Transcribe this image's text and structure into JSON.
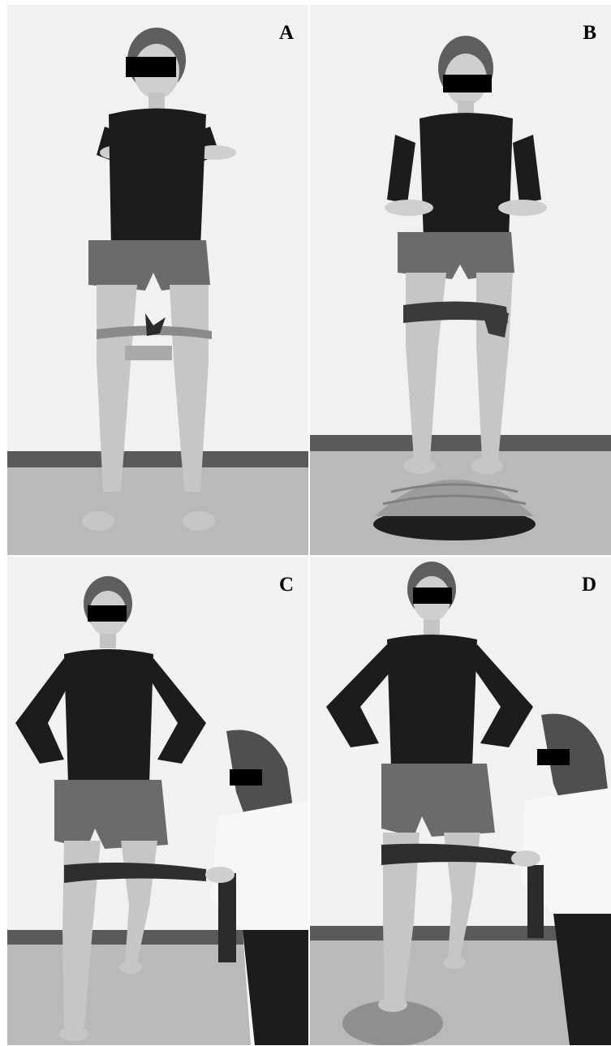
{
  "figure": {
    "panels": [
      {
        "id": "A",
        "label": "A"
      },
      {
        "id": "B",
        "label": "B"
      },
      {
        "id": "C",
        "label": "C"
      },
      {
        "id": "D",
        "label": "D"
      }
    ]
  },
  "colors": {
    "wall": "#f1f1f1",
    "floor": "#b9b9b9",
    "baseboard": "#5a5a5a",
    "shirt": "#1c1c1c",
    "shorts": "#6b6b6b",
    "skin": "#c9c9c9",
    "band": "#3a3a3a",
    "censor_bar": "#000000",
    "coat": "#f7f7f7"
  }
}
